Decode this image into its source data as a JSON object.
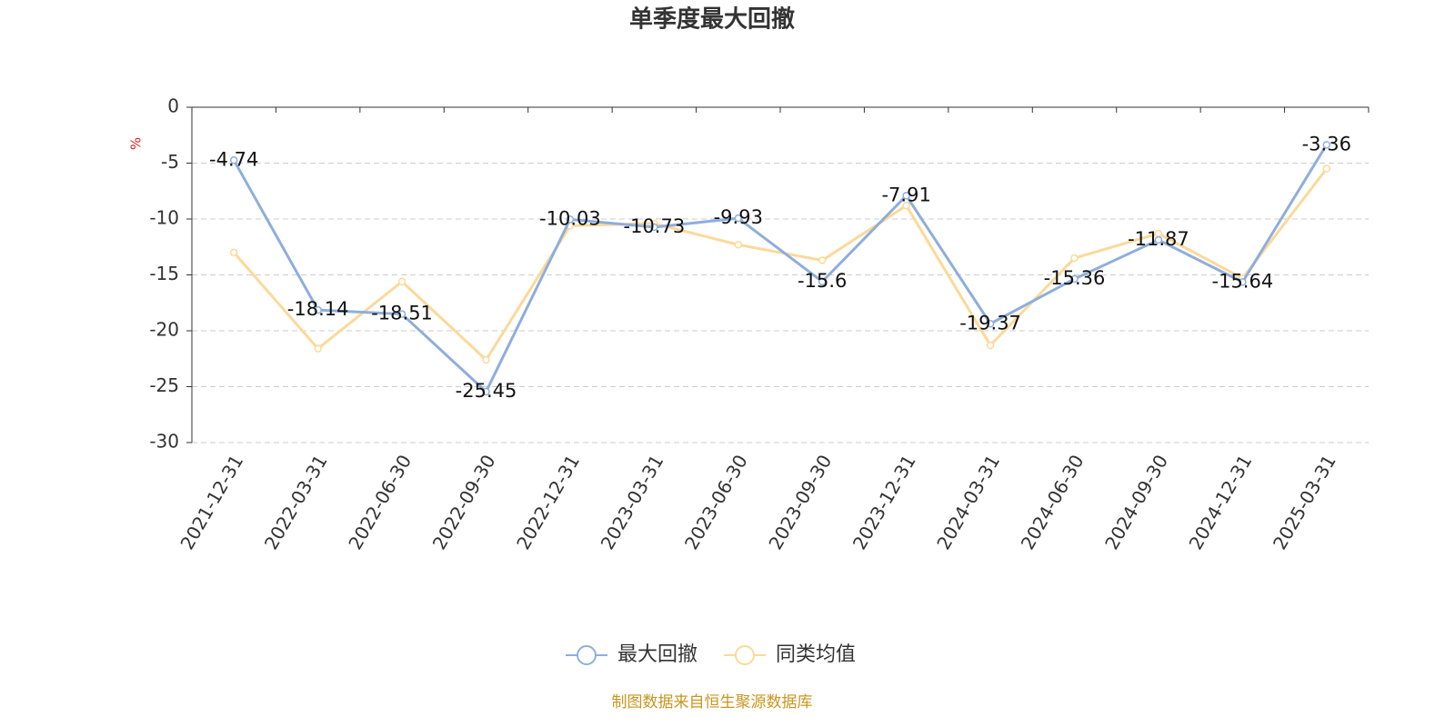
{
  "chart_data": {
    "type": "line",
    "title": "单季度最大回撤",
    "y_label": "%",
    "categories": [
      "2021-12-31",
      "2022-03-31",
      "2022-06-30",
      "2022-09-30",
      "2022-12-31",
      "2023-03-31",
      "2023-06-30",
      "2023-09-30",
      "2023-12-31",
      "2024-03-31",
      "2024-06-30",
      "2024-09-30",
      "2024-12-31",
      "2025-03-31"
    ],
    "series": [
      {
        "name": "最大回撤",
        "color": "#8eaedc",
        "values": [
          -4.74,
          -18.14,
          -18.51,
          -25.45,
          -10.03,
          -10.73,
          -9.93,
          -15.6,
          -7.91,
          -19.37,
          -15.36,
          -11.87,
          -15.64,
          -3.36
        ]
      },
      {
        "name": "同类均值",
        "color": "#fcd999",
        "values": [
          -13,
          -21.6,
          -15.6,
          -22.6,
          -10.6,
          -10.4,
          -12.3,
          -13.7,
          -8.8,
          -21.3,
          -13.5,
          -11.3,
          -15.3,
          -5.5
        ]
      }
    ],
    "ylim": [
      -30,
      0
    ],
    "yticks": [
      0,
      -5,
      -10,
      -15,
      -20,
      -25,
      -30
    ],
    "grid": true,
    "footer": "制图数据来自恒生聚源数据库"
  }
}
